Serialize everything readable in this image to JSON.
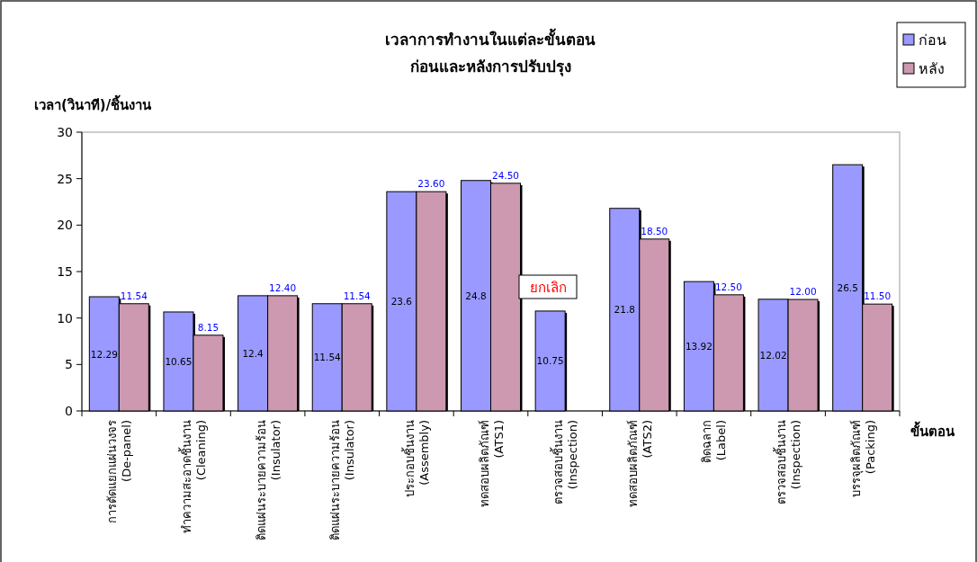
{
  "chart_data": {
    "type": "bar",
    "title": "เวลาการทำงานในแต่ละขั้นตอน",
    "subtitle": "ก่อนและหลังการปรับปรุง",
    "ylabel": "เวลา(วินาที)/ชิ้นงาน",
    "xlabel": "ขั้นตอน",
    "categories": [
      "การตัดแยกแผ่นวงจร (De-panel)",
      "ทำความสะอาดชิ้นงาน (Cleaning)",
      "ติดแผ่นระบายความร้อน (Insulator)",
      "ติดแผ่นระบายความร้อน (Insulator)",
      "ประกอบชิ้นงาน (Assembly)",
      "ทดสอบผลิตภัณฑ์ (ATS1)",
      "ตรวจสอบชิ้นงาน (Inspection)",
      "ทดสอบผลิตภัณฑ์ (ATS2)",
      "ติดฉลาก (Label)",
      "ตรวจสอบชิ้นงาน (Inspection)",
      "บรรจุผลิตภัณฑ์ (Packing)"
    ],
    "series": [
      {
        "name": "ก่อน",
        "color": "#9999ff",
        "values": [
          12.29,
          10.65,
          12.4,
          11.54,
          23.6,
          24.8,
          10.75,
          21.8,
          13.92,
          12.02,
          26.5
        ],
        "value_labels": [
          "12.29",
          "10.65",
          "12.4",
          "11.54",
          "23.6",
          "24.8",
          "10.75",
          "21.8",
          "13.92",
          "12.02",
          "26.5"
        ]
      },
      {
        "name": "หลัง",
        "color": "#cc99b0",
        "values": [
          11.54,
          8.15,
          12.4,
          11.54,
          23.6,
          24.5,
          null,
          18.5,
          12.5,
          12.0,
          11.5
        ],
        "value_labels": [
          "11.54",
          "8.15",
          "12.40",
          "11.54",
          "23.60",
          "24.50",
          null,
          "18.50",
          "12.50",
          "12.00",
          "11.50"
        ]
      }
    ],
    "ylim": [
      0,
      30
    ],
    "yticks": [
      0,
      5,
      10,
      15,
      20,
      25,
      30
    ],
    "legend": "top right",
    "annotations": [
      "ยกเลิก"
    ]
  }
}
